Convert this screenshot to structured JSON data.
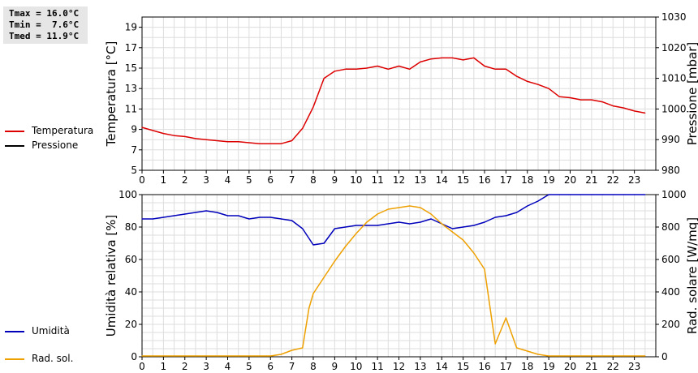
{
  "stats": {
    "tmax": "Tmax = 16.0°C",
    "tmin": "Tmin =  7.6°C",
    "tmed": "Tmed = 11.9°C"
  },
  "legend_top": [
    {
      "label": "Temperatura",
      "color": "#dd0000"
    },
    {
      "label": "Pressione",
      "color": "#000000"
    }
  ],
  "legend_bottom": [
    {
      "label": "Umidità",
      "color": "#0000bb"
    },
    {
      "label": "Rad. sol.",
      "color": "#eea000"
    }
  ],
  "chart_data": [
    {
      "type": "line",
      "ylabel": "Temperatura [°C]",
      "y2label": "Pressione [mbar]",
      "ylim": [
        5,
        20
      ],
      "yticks": [
        5,
        7,
        9,
        11,
        13,
        15,
        17,
        19
      ],
      "y2lim": [
        980,
        1030
      ],
      "y2ticks": [
        980,
        990,
        1000,
        1010,
        1020,
        1030
      ],
      "xlim": [
        0,
        24
      ],
      "xticks": [
        "0",
        "1",
        "2",
        "3",
        "4",
        "5",
        "6",
        "7",
        "8",
        "9",
        "10",
        "11",
        "12",
        "13",
        "14",
        "15",
        "16",
        "17",
        "18",
        "19",
        "20",
        "21",
        "22",
        "23"
      ],
      "grid": true,
      "series": [
        {
          "name": "Temperatura",
          "color": "#dd0000",
          "axis": "left",
          "x": [
            0,
            0.5,
            1,
            1.5,
            2,
            2.5,
            3,
            3.5,
            4,
            4.5,
            5,
            5.5,
            6,
            6.5,
            7,
            7.5,
            8,
            8.5,
            9,
            9.5,
            10,
            10.5,
            11,
            11.5,
            12,
            12.5,
            13,
            13.5,
            14,
            14.5,
            15,
            15.5,
            16,
            16.5,
            17,
            17.5,
            18,
            18.5,
            19,
            19.5,
            20,
            20.5,
            21,
            21.5,
            22,
            22.5,
            23,
            23.5
          ],
          "values": [
            9.2,
            8.9,
            8.6,
            8.4,
            8.3,
            8.1,
            8.0,
            7.9,
            7.8,
            7.8,
            7.7,
            7.6,
            7.6,
            7.6,
            7.9,
            9.1,
            11.2,
            14.0,
            14.7,
            14.9,
            14.9,
            15.0,
            15.2,
            14.9,
            15.2,
            14.9,
            15.6,
            15.9,
            16.0,
            16.0,
            15.8,
            16.0,
            15.2,
            14.9,
            14.9,
            14.2,
            13.7,
            13.4,
            13.0,
            12.2,
            12.1,
            11.9,
            11.9,
            11.7,
            11.3,
            11.1,
            10.8,
            10.6
          ]
        },
        {
          "name": "Pressione",
          "color": "#000000",
          "axis": "right",
          "x": [],
          "values": []
        }
      ]
    },
    {
      "type": "line",
      "ylabel": "Umidità relativa [%]",
      "y2label": "Rad. solare [W/mq]",
      "ylim": [
        0,
        100
      ],
      "yticks": [
        0,
        20,
        40,
        60,
        80,
        100
      ],
      "y2lim": [
        0,
        1000
      ],
      "y2ticks": [
        0,
        200,
        400,
        600,
        800,
        1000
      ],
      "xlim": [
        0,
        24
      ],
      "xticks": [
        "0",
        "1",
        "2",
        "3",
        "4",
        "5",
        "6",
        "7",
        "8",
        "9",
        "10",
        "11",
        "12",
        "13",
        "14",
        "15",
        "16",
        "17",
        "18",
        "19",
        "20",
        "21",
        "22",
        "23"
      ],
      "grid": true,
      "series": [
        {
          "name": "Umidità",
          "color": "#0000bb",
          "axis": "left",
          "x": [
            0,
            0.5,
            1,
            1.5,
            2,
            2.5,
            3,
            3.5,
            4,
            4.5,
            5,
            5.5,
            6,
            6.5,
            7,
            7.5,
            8,
            8.5,
            9,
            9.5,
            10,
            10.5,
            11,
            11.5,
            12,
            12.5,
            13,
            13.5,
            14,
            14.5,
            15,
            15.5,
            16,
            16.5,
            17,
            17.5,
            18,
            18.5,
            19,
            19.5,
            20,
            20.5,
            21,
            21.5,
            22,
            22.5,
            23,
            23.5
          ],
          "values": [
            85,
            85,
            86,
            87,
            88,
            89,
            90,
            89,
            87,
            87,
            85,
            86,
            86,
            85,
            84,
            79,
            69,
            70,
            79,
            80,
            81,
            81,
            81,
            82,
            83,
            82,
            83,
            85,
            82,
            79,
            80,
            81,
            83,
            86,
            87,
            89,
            93,
            96,
            100,
            100,
            100,
            100,
            100,
            100,
            100,
            100,
            100,
            100
          ]
        },
        {
          "name": "Rad. sol.",
          "color": "#eea000",
          "axis": "right",
          "x": [
            0,
            0.5,
            1,
            1.5,
            2,
            2.5,
            3,
            3.5,
            4,
            4.5,
            5,
            5.5,
            6,
            6.5,
            7,
            7.5,
            7.8,
            8,
            8.5,
            9,
            9.5,
            10,
            10.5,
            11,
            11.5,
            12,
            12.5,
            13,
            13.5,
            14,
            14.5,
            15,
            15.5,
            16,
            16.5,
            17,
            17.5,
            18,
            18.5,
            19,
            19.5,
            20,
            20.5,
            21,
            21.5,
            22,
            22.5,
            23,
            23.5
          ],
          "values": [
            5,
            5,
            5,
            5,
            5,
            5,
            5,
            5,
            5,
            5,
            5,
            5,
            5,
            15,
            40,
            55,
            300,
            390,
            490,
            590,
            680,
            760,
            830,
            880,
            910,
            920,
            930,
            920,
            880,
            820,
            770,
            720,
            640,
            540,
            80,
            240,
            55,
            35,
            15,
            5,
            5,
            5,
            5,
            5,
            5,
            5,
            5,
            5,
            5
          ]
        }
      ]
    }
  ]
}
